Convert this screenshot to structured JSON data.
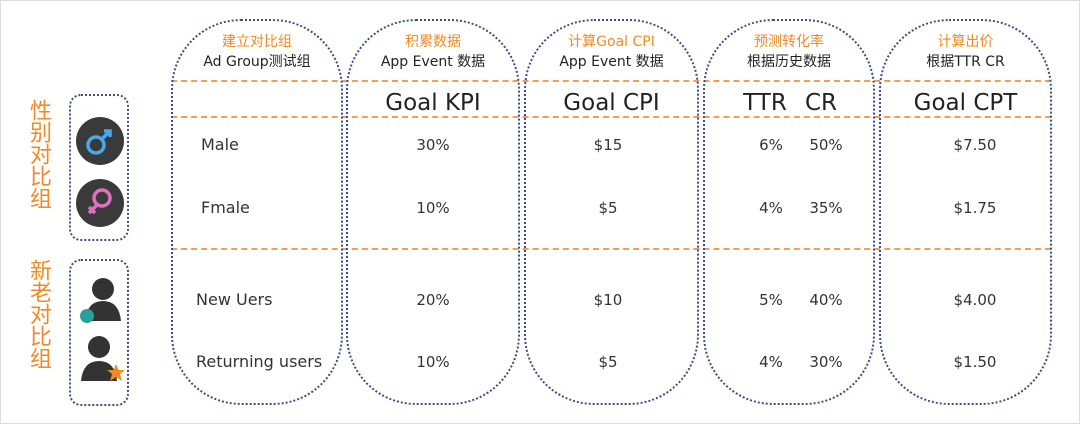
{
  "columns": [
    {
      "title": "建立对比组",
      "subtitle": "Ad Group测试组",
      "headings": []
    },
    {
      "title": "积累数据",
      "subtitle": "App Event 数据",
      "headings": [
        "Goal KPI"
      ]
    },
    {
      "title": "计算Goal CPI",
      "subtitle": "App Event 数据",
      "headings": [
        "Goal CPI"
      ]
    },
    {
      "title": "预测转化率",
      "subtitle": "根据历史数据",
      "headings": [
        "TTR",
        "CR"
      ]
    },
    {
      "title": "计算出价",
      "subtitle": "根据TTR CR",
      "headings": [
        "Goal CPT"
      ]
    }
  ],
  "groups": [
    {
      "label": "性别对比组",
      "rows": [
        {
          "name": "Male",
          "kpi": "30%",
          "cpi": "$15",
          "ttr": "6%",
          "cr": "50%",
          "cpt": "$7.50"
        },
        {
          "name": "Fmale",
          "kpi": "10%",
          "cpi": "$5",
          "ttr": "4%",
          "cr": "35%",
          "cpt": "$1.75"
        }
      ]
    },
    {
      "label": "新老对比组",
      "rows": [
        {
          "name": "New Uers",
          "kpi": "20%",
          "cpi": "$10",
          "ttr": "5%",
          "cr": "40%",
          "cpt": "$4.00"
        },
        {
          "name": "Returning users",
          "kpi": "10%",
          "cpi": "$5",
          "ttr": "4%",
          "cr": "30%",
          "cpt": "$1.50"
        }
      ]
    }
  ]
}
